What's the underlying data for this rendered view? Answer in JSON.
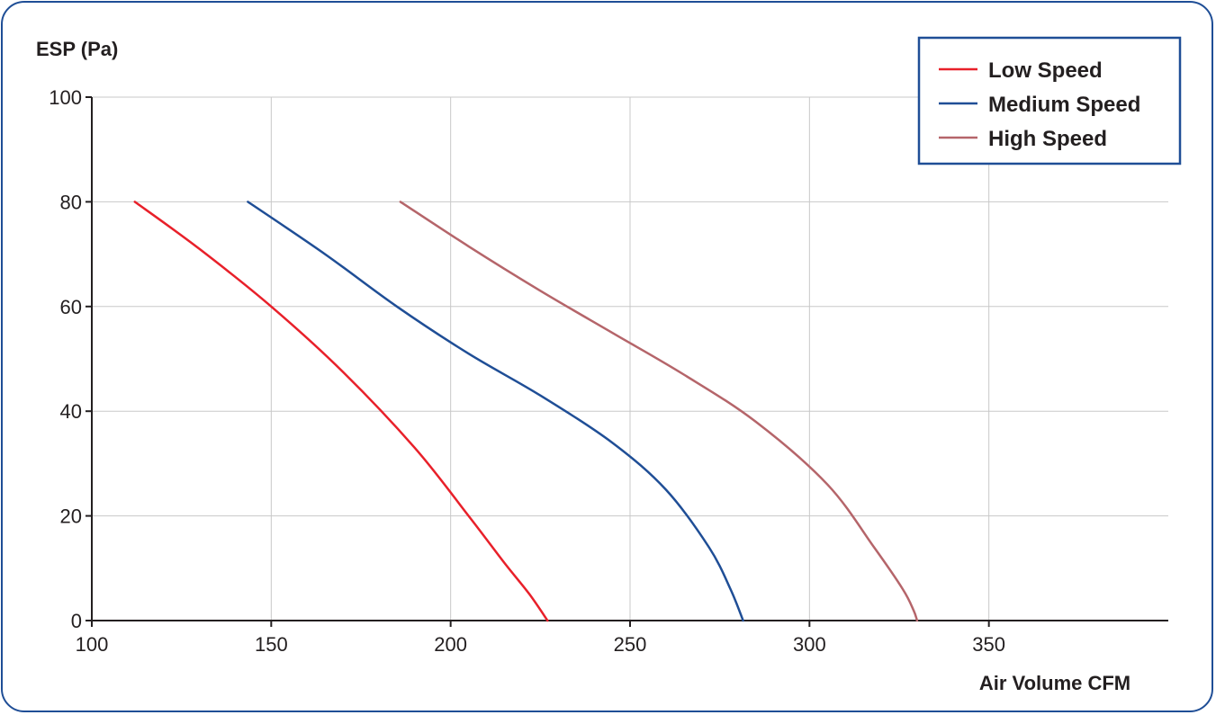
{
  "chart_data": {
    "type": "line",
    "title": "",
    "xlabel": "Air Volume CFM",
    "ylabel": "ESP (Pa)",
    "xlim": [
      100,
      400
    ],
    "ylim": [
      0,
      100
    ],
    "x_ticks": [
      100,
      150,
      200,
      250,
      300,
      350
    ],
    "y_ticks": [
      0,
      20,
      40,
      60,
      80,
      100
    ],
    "grid": true,
    "legend_position": "top-right",
    "series": [
      {
        "name": "Low Speed",
        "color": "#e8202a",
        "points": [
          [
            112,
            80
          ],
          [
            130,
            71
          ],
          [
            150,
            60
          ],
          [
            170,
            47.5
          ],
          [
            190,
            33
          ],
          [
            205,
            20
          ],
          [
            215,
            11
          ],
          [
            222,
            5
          ],
          [
            227,
            0
          ]
        ]
      },
      {
        "name": "Medium Speed",
        "color": "#1f4e96",
        "points": [
          [
            143.5,
            80
          ],
          [
            165,
            70
          ],
          [
            185,
            60
          ],
          [
            205,
            51
          ],
          [
            225,
            43
          ],
          [
            245,
            34
          ],
          [
            260,
            25
          ],
          [
            272,
            14
          ],
          [
            278,
            6
          ],
          [
            281.5,
            0
          ]
        ]
      },
      {
        "name": "High Speed",
        "color": "#b5656a",
        "points": [
          [
            186,
            80
          ],
          [
            205,
            71.5
          ],
          [
            225,
            63
          ],
          [
            245,
            55
          ],
          [
            265,
            47
          ],
          [
            285,
            38
          ],
          [
            305,
            26
          ],
          [
            318,
            14
          ],
          [
            326,
            6
          ],
          [
            329,
            2
          ],
          [
            330,
            0
          ]
        ]
      }
    ]
  }
}
